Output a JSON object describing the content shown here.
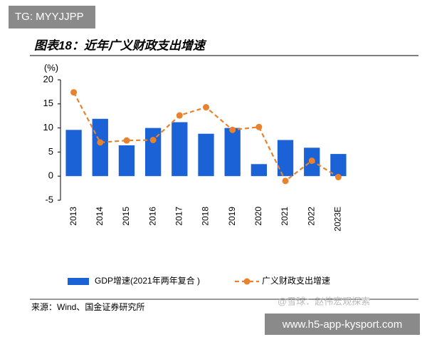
{
  "chart_data": {
    "type": "bar-line",
    "title": "图表18：近年广义财政支出增速",
    "y_label": "(%)",
    "categories": [
      "2013",
      "2014",
      "2015",
      "2016",
      "2017",
      "2018",
      "2019",
      "2020",
      "2021",
      "2022",
      "2023E"
    ],
    "series": [
      {
        "name": "GDP增速(2021年两年复合 )",
        "type": "bar",
        "color": "#1a62d6",
        "values": [
          9.6,
          11.9,
          6.4,
          10.0,
          11.2,
          8.8,
          10.0,
          2.5,
          7.5,
          5.9,
          4.6
        ]
      },
      {
        "name": "广义财政支出增速",
        "type": "line",
        "color": "#e8822c",
        "values": [
          17.4,
          7.0,
          7.4,
          7.5,
          12.6,
          14.3,
          9.6,
          10.2,
          -1.0,
          3.2,
          -0.2
        ]
      }
    ],
    "ylim": [
      -5,
      20
    ],
    "yticks": [
      -5,
      0,
      5,
      10,
      15,
      20
    ],
    "grid": false,
    "legend": "bottom",
    "source": "来源：Wind、国金证券研究所"
  },
  "watermarks": {
    "top": "TG: MYYJJPP",
    "middle": "@雪球：赵伟宏观探索",
    "bottom": "www.h5-app-kysport.com"
  }
}
